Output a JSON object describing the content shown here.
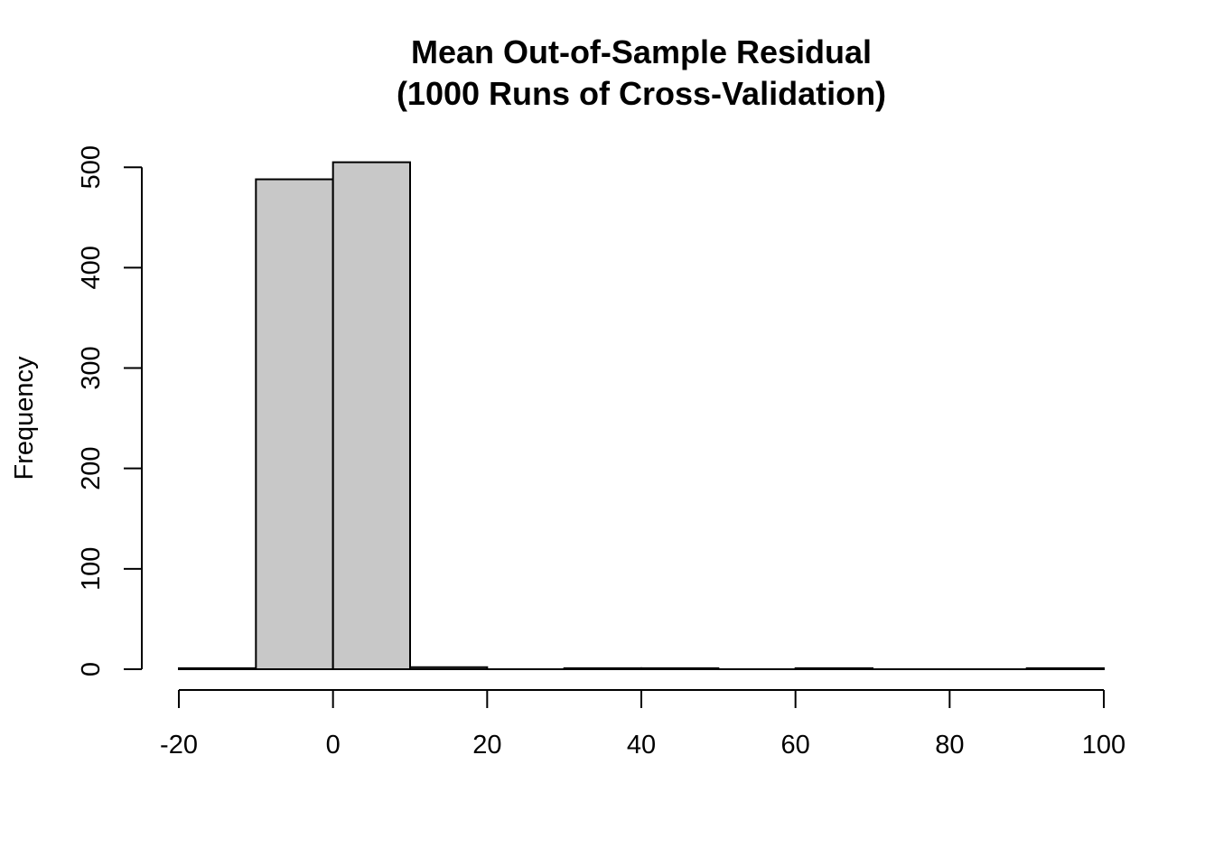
{
  "chart_data": {
    "type": "bar",
    "histogram": true,
    "title_lines": [
      "Mean Out-of-Sample Residual",
      "(1000 Runs of Cross-Validation)"
    ],
    "xlabel": "",
    "ylabel": "Frequency",
    "bins": [
      {
        "from": -20,
        "to": -10,
        "count": 1
      },
      {
        "from": -10,
        "to": 0,
        "count": 488
      },
      {
        "from": 0,
        "to": 10,
        "count": 505
      },
      {
        "from": 10,
        "to": 20,
        "count": 2
      },
      {
        "from": 20,
        "to": 30,
        "count": 0
      },
      {
        "from": 30,
        "to": 40,
        "count": 1
      },
      {
        "from": 40,
        "to": 50,
        "count": 1
      },
      {
        "from": 50,
        "to": 60,
        "count": 0
      },
      {
        "from": 60,
        "to": 70,
        "count": 1
      },
      {
        "from": 70,
        "to": 80,
        "count": 0
      },
      {
        "from": 80,
        "to": 90,
        "count": 0
      },
      {
        "from": 90,
        "to": 100,
        "count": 1
      }
    ],
    "xlim": [
      -20,
      100
    ],
    "ylim": [
      0,
      505
    ],
    "x_ticks": [
      "-20",
      "0",
      "20",
      "40",
      "60",
      "80",
      "100"
    ],
    "y_ticks": [
      "0",
      "100",
      "200",
      "300",
      "400",
      "500"
    ],
    "bar_color": "#c8c8c8",
    "grid": false,
    "legend": "none"
  }
}
